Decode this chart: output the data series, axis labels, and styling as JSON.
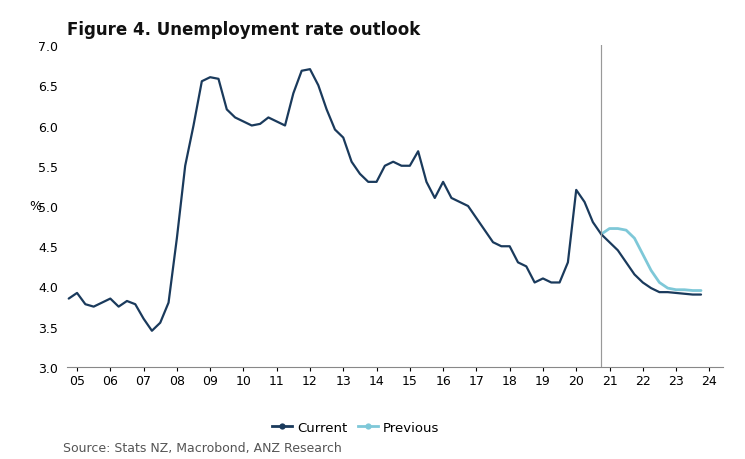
{
  "title": "Figure 4. Unemployment rate outlook",
  "source": "Source: Stats NZ, Macrobond, ANZ Research",
  "ylabel": "%",
  "ylim": [
    3.0,
    7.0
  ],
  "yticks": [
    3.0,
    3.5,
    4.0,
    4.5,
    5.0,
    5.5,
    6.0,
    6.5,
    7.0
  ],
  "vline_x": 20.75,
  "current_color": "#1a3a5c",
  "previous_color": "#7ec8d8",
  "bg_color": "#ffffff",
  "current_x": [
    4.75,
    5.0,
    5.25,
    5.5,
    5.75,
    6.0,
    6.25,
    6.5,
    6.75,
    7.0,
    7.25,
    7.5,
    7.75,
    8.0,
    8.25,
    8.5,
    8.75,
    9.0,
    9.25,
    9.5,
    9.75,
    10.0,
    10.25,
    10.5,
    10.75,
    11.0,
    11.25,
    11.5,
    11.75,
    12.0,
    12.25,
    12.5,
    12.75,
    13.0,
    13.25,
    13.5,
    13.75,
    14.0,
    14.25,
    14.5,
    14.75,
    15.0,
    15.25,
    15.5,
    15.75,
    16.0,
    16.25,
    16.5,
    16.75,
    17.0,
    17.25,
    17.5,
    17.75,
    18.0,
    18.25,
    18.5,
    18.75,
    19.0,
    19.25,
    19.5,
    19.75,
    20.0,
    20.25,
    20.5,
    20.75,
    21.0,
    21.25,
    21.5,
    21.75,
    22.0,
    22.25,
    22.5,
    22.75,
    23.0,
    23.25,
    23.5,
    23.75
  ],
  "current_y": [
    3.85,
    3.92,
    3.78,
    3.75,
    3.8,
    3.85,
    3.75,
    3.82,
    3.78,
    3.6,
    3.45,
    3.55,
    3.8,
    4.6,
    5.5,
    6.0,
    6.55,
    6.6,
    6.58,
    6.2,
    6.1,
    6.05,
    6.0,
    6.02,
    6.1,
    6.05,
    6.0,
    6.4,
    6.68,
    6.7,
    6.5,
    6.2,
    5.95,
    5.85,
    5.55,
    5.4,
    5.3,
    5.3,
    5.5,
    5.55,
    5.5,
    5.5,
    5.68,
    5.3,
    5.1,
    5.3,
    5.1,
    5.05,
    5.0,
    4.85,
    4.7,
    4.55,
    4.5,
    4.5,
    4.3,
    4.25,
    4.05,
    4.1,
    4.05,
    4.05,
    4.3,
    5.2,
    5.05,
    4.8,
    4.65,
    4.55,
    4.45,
    4.3,
    4.15,
    4.05,
    3.98,
    3.93,
    3.93,
    3.92,
    3.91,
    3.9,
    3.9
  ],
  "previous_x": [
    20.75,
    21.0,
    21.25,
    21.5,
    21.75,
    22.0,
    22.25,
    22.5,
    22.75,
    23.0,
    23.25,
    23.5,
    23.75
  ],
  "previous_y": [
    4.65,
    4.72,
    4.72,
    4.7,
    4.6,
    4.4,
    4.2,
    4.05,
    3.98,
    3.96,
    3.96,
    3.95,
    3.95
  ],
  "xtick_positions": [
    5,
    6,
    7,
    8,
    9,
    10,
    11,
    12,
    13,
    14,
    15,
    16,
    17,
    18,
    19,
    20,
    21,
    22,
    23,
    24
  ],
  "xtick_labels": [
    "05",
    "06",
    "07",
    "08",
    "09",
    "10",
    "11",
    "12",
    "13",
    "14",
    "15",
    "16",
    "17",
    "18",
    "19",
    "20",
    "21",
    "22",
    "23",
    "24"
  ],
  "legend_current": "Current",
  "legend_previous": "Previous",
  "title_fontsize": 12,
  "axis_fontsize": 9,
  "tick_fontsize": 9,
  "source_fontsize": 9
}
